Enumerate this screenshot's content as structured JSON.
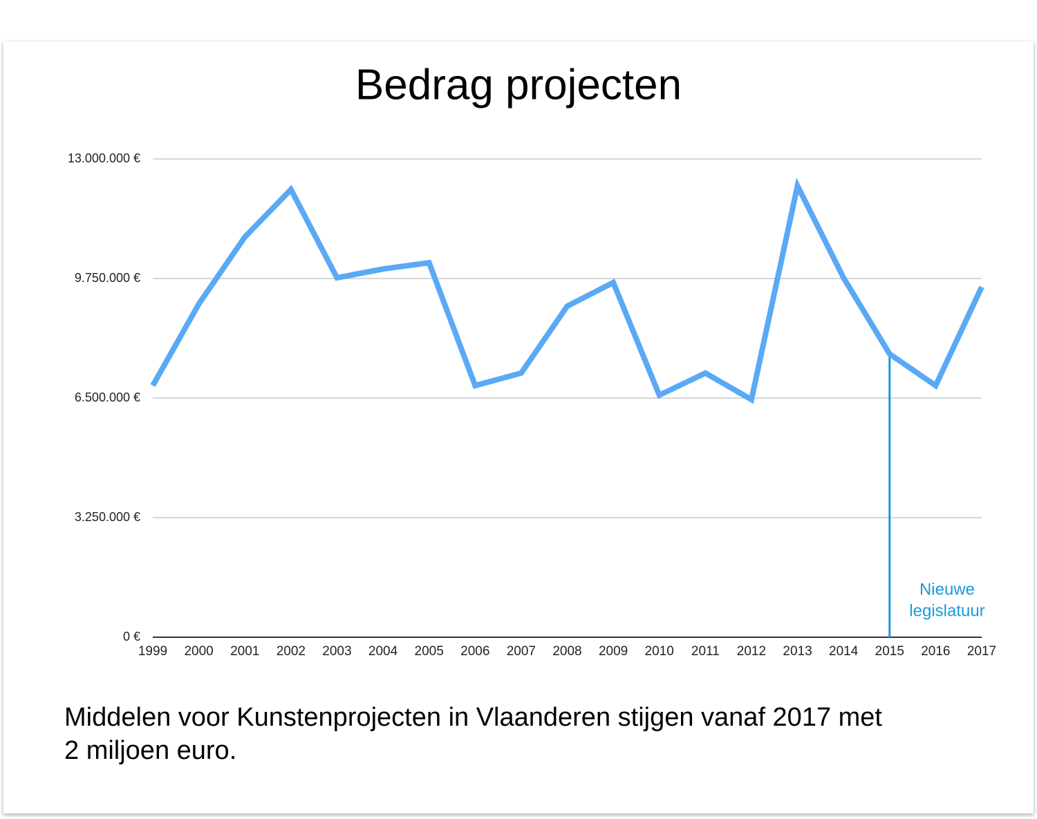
{
  "chart_data": {
    "type": "line",
    "title": "Bedrag projecten",
    "categories": [
      "1999",
      "2000",
      "2001",
      "2002",
      "2003",
      "2004",
      "2005",
      "2006",
      "2007",
      "2008",
      "2009",
      "2010",
      "2011",
      "2012",
      "2013",
      "2014",
      "2015",
      "2016",
      "2017"
    ],
    "series": [
      {
        "name": "Bedrag projecten",
        "color": "#5aa9f5",
        "values": [
          6840000,
          9060000,
          10880000,
          12170000,
          9770000,
          10010000,
          10180000,
          6840000,
          7180000,
          9000000,
          9640000,
          6580000,
          7180000,
          6460000,
          12270000,
          9770000,
          7700000,
          6840000,
          9520000
        ]
      }
    ],
    "ylim": [
      0,
      13000000
    ],
    "yticks": [
      {
        "value": 0,
        "label": "0 €"
      },
      {
        "value": 3250000,
        "label": "3.250.000 €"
      },
      {
        "value": 6500000,
        "label": "6.500.000 €"
      },
      {
        "value": 9750000,
        "label": "9.750.000 €"
      },
      {
        "value": 13000000,
        "label": "13.000.000 €"
      }
    ],
    "grid": true,
    "annotation": {
      "category": "2015",
      "color": "#1a9ad6",
      "lines": [
        "Nieuwe",
        "legislatuur"
      ]
    },
    "caption": [
      "Middelen voor Kunstenprojecten in Vlaanderen stijgen vanaf 2017 met",
      "2 miljoen euro."
    ]
  }
}
